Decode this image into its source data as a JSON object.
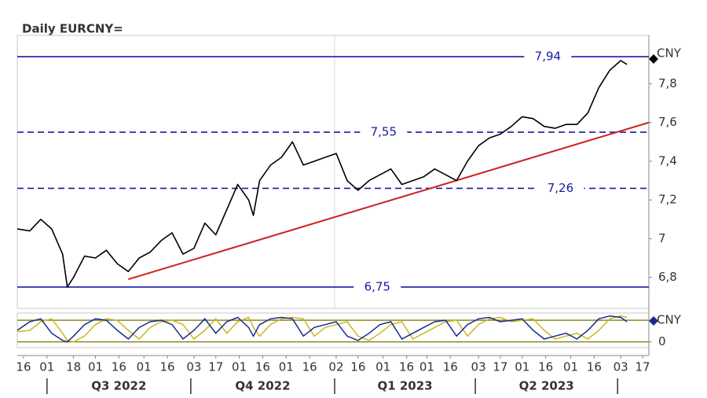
{
  "chart_data": [
    {
      "type": "line",
      "title": "Daily EURCNY=",
      "unit": "CNY",
      "color": "#000000",
      "xlim": [
        "2022-06-12",
        "2023-07-21"
      ],
      "ylim": [
        6.64,
        8.05
      ],
      "yticks": [
        {
          "value": 6.8,
          "label": "6,8"
        },
        7,
        {
          "value": 7.2,
          "label": "7,2"
        },
        {
          "value": 7.4,
          "label": "7,4"
        },
        {
          "value": 7.6,
          "label": "7,6"
        },
        {
          "value": 7.8,
          "label": "7,8"
        }
      ],
      "xticks": [
        {
          "value": "2022-06-16",
          "label": "16"
        },
        {
          "value": "2022-07-01",
          "label": "01"
        },
        {
          "value": "2022-07-18",
          "label": "18"
        },
        {
          "value": "2022-08-01",
          "label": "01"
        },
        {
          "value": "2022-08-16",
          "label": "16"
        },
        {
          "value": "2022-09-01",
          "label": "01"
        },
        {
          "value": "2022-09-16",
          "label": "16"
        },
        {
          "value": "2022-10-03",
          "label": "03"
        },
        {
          "value": "2022-10-17",
          "label": "17"
        },
        {
          "value": "2022-11-01",
          "label": "01"
        },
        {
          "value": "2022-11-16",
          "label": "16"
        },
        {
          "value": "2022-12-01",
          "label": "01"
        },
        {
          "value": "2022-12-16",
          "label": "16"
        },
        {
          "value": "2023-01-02",
          "label": "02"
        },
        {
          "value": "2023-01-16",
          "label": "16"
        },
        {
          "value": "2023-02-01",
          "label": "01"
        },
        {
          "value": "2023-02-16",
          "label": "16"
        },
        {
          "value": "2023-03-01",
          "label": "01"
        },
        {
          "value": "2023-03-16",
          "label": "16"
        },
        {
          "value": "2023-04-03",
          "label": "03"
        },
        {
          "value": "2023-04-17",
          "label": "17"
        },
        {
          "value": "2023-05-01",
          "label": "01"
        },
        {
          "value": "2023-05-16",
          "label": "16"
        },
        {
          "value": "2023-06-01",
          "label": "01"
        },
        {
          "value": "2023-06-16",
          "label": "16"
        },
        {
          "value": "2023-07-03",
          "label": "03"
        },
        {
          "value": "2023-07-17",
          "label": "17"
        }
      ],
      "periods": [
        {
          "label": "Q3 2022",
          "start": "2022-07-01",
          "end": "2022-10-01"
        },
        {
          "label": "Q4 2022",
          "start": "2022-10-01",
          "end": "2023-01-01"
        },
        {
          "label": "Q1 2023",
          "start": "2023-01-01",
          "end": "2023-04-01"
        },
        {
          "label": "Q2 2023",
          "start": "2023-04-01",
          "end": "2023-07-01"
        }
      ],
      "levels": [
        {
          "value": 7.94,
          "label": "7,94",
          "style": "solid"
        },
        {
          "value": 7.55,
          "label": "7,55",
          "style": "dashed"
        },
        {
          "value": 7.26,
          "label": "7,26",
          "style": "dashed"
        },
        {
          "value": 6.75,
          "label": "6,75",
          "style": "solid"
        }
      ],
      "level_color": "#1a1aa6",
      "trendline": {
        "x": [
          "2022-08-22",
          "2023-07-21"
        ],
        "values": [
          6.79,
          7.6
        ],
        "color": "#cc2222"
      },
      "x": [
        "2022-06-12",
        "2022-06-20",
        "2022-06-27",
        "2022-07-04",
        "2022-07-11",
        "2022-07-14",
        "2022-07-18",
        "2022-07-25",
        "2022-08-01",
        "2022-08-08",
        "2022-08-15",
        "2022-08-22",
        "2022-08-29",
        "2022-09-05",
        "2022-09-12",
        "2022-09-19",
        "2022-09-26",
        "2022-10-03",
        "2022-10-10",
        "2022-10-17",
        "2022-10-24",
        "2022-10-31",
        "2022-11-07",
        "2022-11-10",
        "2022-11-14",
        "2022-11-21",
        "2022-11-28",
        "2022-12-05",
        "2022-12-12",
        "2022-12-19",
        "2022-12-26",
        "2023-01-02",
        "2023-01-09",
        "2023-01-16",
        "2023-01-23",
        "2023-01-30",
        "2023-02-06",
        "2023-02-13",
        "2023-02-20",
        "2023-02-27",
        "2023-03-06",
        "2023-03-13",
        "2023-03-20",
        "2023-03-27",
        "2023-04-03",
        "2023-04-10",
        "2023-04-17",
        "2023-04-24",
        "2023-05-01",
        "2023-05-08",
        "2023-05-15",
        "2023-05-22",
        "2023-05-29",
        "2023-06-05",
        "2023-06-12",
        "2023-06-19",
        "2023-06-26",
        "2023-07-03",
        "2023-07-07"
      ],
      "values": [
        7.05,
        7.04,
        7.1,
        7.05,
        6.92,
        6.75,
        6.8,
        6.91,
        6.9,
        6.94,
        6.87,
        6.83,
        6.9,
        6.93,
        6.99,
        7.03,
        6.92,
        6.95,
        7.08,
        7.02,
        7.15,
        7.28,
        7.2,
        7.12,
        7.3,
        7.38,
        7.42,
        7.5,
        7.38,
        7.4,
        7.42,
        7.44,
        7.3,
        7.25,
        7.3,
        7.33,
        7.36,
        7.28,
        7.3,
        7.32,
        7.36,
        7.33,
        7.3,
        7.4,
        7.48,
        7.52,
        7.54,
        7.58,
        7.63,
        7.62,
        7.58,
        7.57,
        7.59,
        7.59,
        7.65,
        7.78,
        7.87,
        7.92,
        7.9
      ]
    },
    {
      "type": "line",
      "unit": "CNY",
      "xlim": [
        "2022-06-12",
        "2023-07-21"
      ],
      "ylim": [
        -20,
        100
      ],
      "yticks": [
        0
      ],
      "bands": [
        0,
        75
      ],
      "band_color": "#8a8a20",
      "x": [
        "2022-06-12",
        "2022-06-20",
        "2022-06-27",
        "2022-07-04",
        "2022-07-11",
        "2022-07-14",
        "2022-07-18",
        "2022-07-25",
        "2022-08-01",
        "2022-08-08",
        "2022-08-15",
        "2022-08-22",
        "2022-08-29",
        "2022-09-05",
        "2022-09-12",
        "2022-09-19",
        "2022-09-26",
        "2022-10-03",
        "2022-10-10",
        "2022-10-17",
        "2022-10-24",
        "2022-10-31",
        "2022-11-07",
        "2022-11-10",
        "2022-11-14",
        "2022-11-21",
        "2022-11-28",
        "2022-12-05",
        "2022-12-12",
        "2022-12-19",
        "2022-12-26",
        "2023-01-02",
        "2023-01-09",
        "2023-01-16",
        "2023-01-23",
        "2023-01-30",
        "2023-02-06",
        "2023-02-13",
        "2023-02-20",
        "2023-02-27",
        "2023-03-06",
        "2023-03-13",
        "2023-03-20",
        "2023-03-27",
        "2023-04-03",
        "2023-04-10",
        "2023-04-17",
        "2023-04-24",
        "2023-05-01",
        "2023-05-08",
        "2023-05-15",
        "2023-05-22",
        "2023-05-29",
        "2023-06-05",
        "2023-06-12",
        "2023-06-19",
        "2023-06-26",
        "2023-07-03",
        "2023-07-07"
      ],
      "series": [
        {
          "color": "#c8b820",
          "values": [
            35,
            40,
            70,
            80,
            30,
            5,
            0,
            20,
            60,
            80,
            75,
            40,
            10,
            50,
            70,
            75,
            60,
            10,
            40,
            80,
            30,
            70,
            85,
            50,
            20,
            60,
            80,
            85,
            80,
            20,
            50,
            60,
            70,
            20,
            5,
            30,
            60,
            70,
            10,
            30,
            50,
            70,
            75,
            20,
            60,
            80,
            85,
            70,
            75,
            80,
            40,
            10,
            20,
            30,
            10,
            40,
            80,
            90,
            85
          ]
        },
        {
          "color": "#1a2a8a",
          "values": [
            40,
            70,
            80,
            30,
            5,
            0,
            20,
            60,
            80,
            75,
            40,
            10,
            50,
            70,
            75,
            60,
            10,
            40,
            80,
            30,
            70,
            85,
            50,
            20,
            60,
            80,
            85,
            80,
            20,
            50,
            60,
            70,
            20,
            5,
            30,
            60,
            70,
            10,
            30,
            50,
            70,
            75,
            20,
            60,
            80,
            85,
            70,
            75,
            80,
            40,
            10,
            20,
            30,
            10,
            40,
            80,
            90,
            85,
            70
          ]
        }
      ]
    }
  ]
}
